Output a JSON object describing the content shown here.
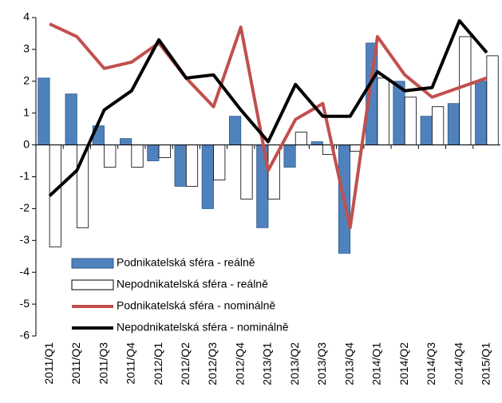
{
  "chart_data": {
    "type": "bar-line",
    "categories": [
      "2011/Q1",
      "2011/Q2",
      "2011/Q3",
      "2011/Q4",
      "2012/Q1",
      "2012/Q2",
      "2012/Q3",
      "2012/Q4",
      "2013/Q1",
      "2013/Q2",
      "2013/Q3",
      "2013/Q4",
      "2014/Q1",
      "2014/Q2",
      "2014/Q3",
      "2014/Q4",
      "2015/Q1"
    ],
    "series": [
      {
        "name": "Podnikatelská sféra - reálně",
        "kind": "bar",
        "color": "#4f81bd",
        "values": [
          2.1,
          1.6,
          0.6,
          0.2,
          -0.5,
          -1.3,
          -2.0,
          0.9,
          -2.6,
          -0.7,
          0.1,
          -3.7,
          3.2,
          2.0,
          0.9,
          1.3,
          2.0
        ]
      },
      {
        "name": "Nepodnikatelská sféra - reálně",
        "kind": "bar",
        "color": "#ffffff",
        "values": [
          -3.2,
          -2.6,
          -0.7,
          -0.7,
          -0.4,
          -1.3,
          -1.1,
          -1.7,
          -1.7,
          0.4,
          -0.3,
          -0.2,
          2.1,
          1.5,
          1.2,
          3.4,
          2.8
        ]
      },
      {
        "name": "Podnikatelská sféra - nominálně",
        "kind": "line",
        "color": "#c0504d",
        "values": [
          3.8,
          3.4,
          2.4,
          2.6,
          3.2,
          2.1,
          1.2,
          3.7,
          -0.8,
          0.8,
          1.3,
          -2.6,
          3.4,
          2.2,
          1.5,
          1.8,
          2.1
        ]
      },
      {
        "name": "Nepodnikatelská sféra - nominálně",
        "kind": "line",
        "color": "#000000",
        "values": [
          -1.6,
          -0.8,
          1.1,
          1.7,
          3.3,
          2.1,
          2.2,
          1.1,
          0.1,
          1.9,
          0.9,
          0.9,
          2.3,
          1.7,
          1.8,
          3.9,
          2.9
        ]
      }
    ],
    "ylim": [
      -6,
      4
    ],
    "yticks": [
      -6,
      -5,
      -4,
      -3,
      -2,
      -1,
      0,
      1,
      2,
      3,
      4
    ],
    "grid": false
  }
}
